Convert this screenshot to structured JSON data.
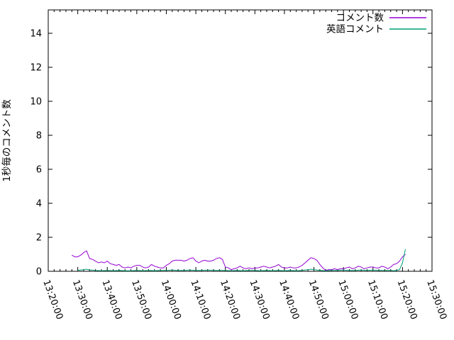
{
  "chart_data": {
    "type": "line",
    "title": "",
    "xlabel": "",
    "ylabel": "1秒毎のコメント数",
    "grid": false,
    "legend_position": "top-right-inside",
    "x_start": "13:20:00",
    "x_end": "15:30:00",
    "x_tick_labels": [
      "13:20:00",
      "13:30:00",
      "13:40:00",
      "13:50:00",
      "14:00:00",
      "14:10:00",
      "14:20:00",
      "14:30:00",
      "14:40:00",
      "14:50:00",
      "15:00:00",
      "15:10:00",
      "15:20:00",
      "15:30:00"
    ],
    "x_major_tick_minutes": 10,
    "x_minor_tick_minutes": 2,
    "y_tick_labels": [
      "0",
      "2",
      "4",
      "6",
      "8",
      "10",
      "12",
      "14"
    ],
    "y_ticks": [
      0,
      2,
      4,
      6,
      8,
      10,
      12,
      14
    ],
    "ylim": [
      0,
      15.4
    ],
    "axis_color": "#000000",
    "background_color": "#ffffff",
    "series": [
      {
        "id": "comments",
        "name": "コメント数",
        "color": "#9400d3",
        "points": [
          [
            "13:28",
            0.95
          ],
          [
            "13:29",
            0.85
          ],
          [
            "13:30",
            0.85
          ],
          [
            "13:31",
            0.95
          ],
          [
            "13:32",
            1.1
          ],
          [
            "13:33",
            1.2
          ],
          [
            "13:34",
            0.75
          ],
          [
            "13:35",
            0.7
          ],
          [
            "13:36",
            0.6
          ],
          [
            "13:37",
            0.5
          ],
          [
            "13:38",
            0.55
          ],
          [
            "13:39",
            0.5
          ],
          [
            "13:40",
            0.6
          ],
          [
            "13:41",
            0.45
          ],
          [
            "13:42",
            0.4
          ],
          [
            "13:43",
            0.35
          ],
          [
            "13:44",
            0.4
          ],
          [
            "13:45",
            0.25
          ],
          [
            "13:46",
            0.2
          ],
          [
            "13:47",
            0.25
          ],
          [
            "13:48",
            0.2
          ],
          [
            "13:49",
            0.3
          ],
          [
            "13:50",
            0.35
          ],
          [
            "13:51",
            0.35
          ],
          [
            "13:52",
            0.25
          ],
          [
            "13:53",
            0.2
          ],
          [
            "13:54",
            0.25
          ],
          [
            "13:55",
            0.4
          ],
          [
            "13:56",
            0.3
          ],
          [
            "13:57",
            0.25
          ],
          [
            "13:58",
            0.2
          ],
          [
            "13:59",
            0.2
          ],
          [
            "14:00",
            0.35
          ],
          [
            "14:01",
            0.45
          ],
          [
            "14:02",
            0.6
          ],
          [
            "14:03",
            0.65
          ],
          [
            "14:04",
            0.65
          ],
          [
            "14:05",
            0.65
          ],
          [
            "14:06",
            0.6
          ],
          [
            "14:07",
            0.65
          ],
          [
            "14:08",
            0.75
          ],
          [
            "14:09",
            0.8
          ],
          [
            "14:10",
            0.6
          ],
          [
            "14:11",
            0.5
          ],
          [
            "14:12",
            0.6
          ],
          [
            "14:13",
            0.65
          ],
          [
            "14:14",
            0.6
          ],
          [
            "14:15",
            0.6
          ],
          [
            "14:16",
            0.65
          ],
          [
            "14:17",
            0.75
          ],
          [
            "14:18",
            0.8
          ],
          [
            "14:19",
            0.7
          ],
          [
            "14:20",
            0.25
          ],
          [
            "14:21",
            0.2
          ],
          [
            "14:22",
            0.1
          ],
          [
            "14:23",
            0.15
          ],
          [
            "14:24",
            0.2
          ],
          [
            "14:25",
            0.3
          ],
          [
            "14:26",
            0.2
          ],
          [
            "14:27",
            0.15
          ],
          [
            "14:28",
            0.2
          ],
          [
            "14:29",
            0.15
          ],
          [
            "14:30",
            0.2
          ],
          [
            "14:31",
            0.2
          ],
          [
            "14:32",
            0.25
          ],
          [
            "14:33",
            0.3
          ],
          [
            "14:34",
            0.25
          ],
          [
            "14:35",
            0.2
          ],
          [
            "14:36",
            0.25
          ],
          [
            "14:37",
            0.3
          ],
          [
            "14:38",
            0.4
          ],
          [
            "14:39",
            0.25
          ],
          [
            "14:40",
            0.2
          ],
          [
            "14:41",
            0.2
          ],
          [
            "14:42",
            0.25
          ],
          [
            "14:43",
            0.2
          ],
          [
            "14:44",
            0.2
          ],
          [
            "14:45",
            0.25
          ],
          [
            "14:46",
            0.35
          ],
          [
            "14:47",
            0.5
          ],
          [
            "14:48",
            0.65
          ],
          [
            "14:49",
            0.8
          ],
          [
            "14:50",
            0.75
          ],
          [
            "14:51",
            0.65
          ],
          [
            "14:52",
            0.4
          ],
          [
            "14:53",
            0.2
          ],
          [
            "14:54",
            0.05
          ],
          [
            "14:55",
            0.1
          ],
          [
            "14:56",
            0.1
          ],
          [
            "14:57",
            0.15
          ],
          [
            "14:58",
            0.1
          ],
          [
            "14:59",
            0.15
          ],
          [
            "15:00",
            0.15
          ],
          [
            "15:01",
            0.2
          ],
          [
            "15:02",
            0.25
          ],
          [
            "15:03",
            0.15
          ],
          [
            "15:04",
            0.2
          ],
          [
            "15:05",
            0.3
          ],
          [
            "15:06",
            0.25
          ],
          [
            "15:07",
            0.15
          ],
          [
            "15:08",
            0.2
          ],
          [
            "15:09",
            0.25
          ],
          [
            "15:10",
            0.25
          ],
          [
            "15:11",
            0.2
          ],
          [
            "15:12",
            0.2
          ],
          [
            "15:13",
            0.3
          ],
          [
            "15:14",
            0.25
          ],
          [
            "15:15",
            0.15
          ],
          [
            "15:16",
            0.25
          ],
          [
            "15:17",
            0.4
          ],
          [
            "15:18",
            0.45
          ],
          [
            "15:19",
            0.6
          ],
          [
            "15:20",
            0.85
          ],
          [
            "15:21",
            1.0
          ]
        ]
      },
      {
        "id": "english_comments",
        "name": "英語コメント",
        "color": "#009e73",
        "points": [
          [
            "13:30",
            0.05
          ],
          [
            "13:32",
            0.1
          ],
          [
            "13:33",
            0.12
          ],
          [
            "13:34",
            0.08
          ],
          [
            "13:36",
            0.05
          ],
          [
            "13:38",
            0.03
          ],
          [
            "13:40",
            0.05
          ],
          [
            "13:42",
            0.03
          ],
          [
            "13:44",
            0.05
          ],
          [
            "13:46",
            0.03
          ],
          [
            "13:48",
            0.03
          ],
          [
            "13:50",
            0.05
          ],
          [
            "13:52",
            0.03
          ],
          [
            "13:54",
            0.05
          ],
          [
            "13:56",
            0.03
          ],
          [
            "13:58",
            0.05
          ],
          [
            "14:00",
            0.05
          ],
          [
            "14:02",
            0.07
          ],
          [
            "14:04",
            0.05
          ],
          [
            "14:06",
            0.05
          ],
          [
            "14:08",
            0.07
          ],
          [
            "14:10",
            0.05
          ],
          [
            "14:12",
            0.05
          ],
          [
            "14:14",
            0.07
          ],
          [
            "14:16",
            0.05
          ],
          [
            "14:18",
            0.05
          ],
          [
            "14:20",
            0.05
          ],
          [
            "14:22",
            0.03
          ],
          [
            "14:24",
            0.05
          ],
          [
            "14:26",
            0.03
          ],
          [
            "14:28",
            0.05
          ],
          [
            "14:30",
            0.05
          ],
          [
            "14:32",
            0.03
          ],
          [
            "14:34",
            0.05
          ],
          [
            "14:36",
            0.03
          ],
          [
            "14:38",
            0.05
          ],
          [
            "14:40",
            0.03
          ],
          [
            "14:42",
            0.05
          ],
          [
            "14:44",
            0.03
          ],
          [
            "14:46",
            0.05
          ],
          [
            "14:48",
            0.1
          ],
          [
            "14:49",
            0.12
          ],
          [
            "14:50",
            0.1
          ],
          [
            "14:52",
            0.05
          ],
          [
            "14:54",
            0.03
          ],
          [
            "14:56",
            0.05
          ],
          [
            "14:58",
            0.05
          ],
          [
            "15:00",
            0.07
          ],
          [
            "15:02",
            0.05
          ],
          [
            "15:04",
            0.05
          ],
          [
            "15:06",
            0.07
          ],
          [
            "15:08",
            0.05
          ],
          [
            "15:10",
            0.07
          ],
          [
            "15:12",
            0.05
          ],
          [
            "15:14",
            0.05
          ],
          [
            "15:16",
            0.05
          ],
          [
            "15:17",
            0.03
          ],
          [
            "15:18",
            0.05
          ],
          [
            "15:19",
            0.1
          ],
          [
            "15:20",
            0.5
          ],
          [
            "15:21",
            1.3
          ]
        ]
      }
    ]
  }
}
